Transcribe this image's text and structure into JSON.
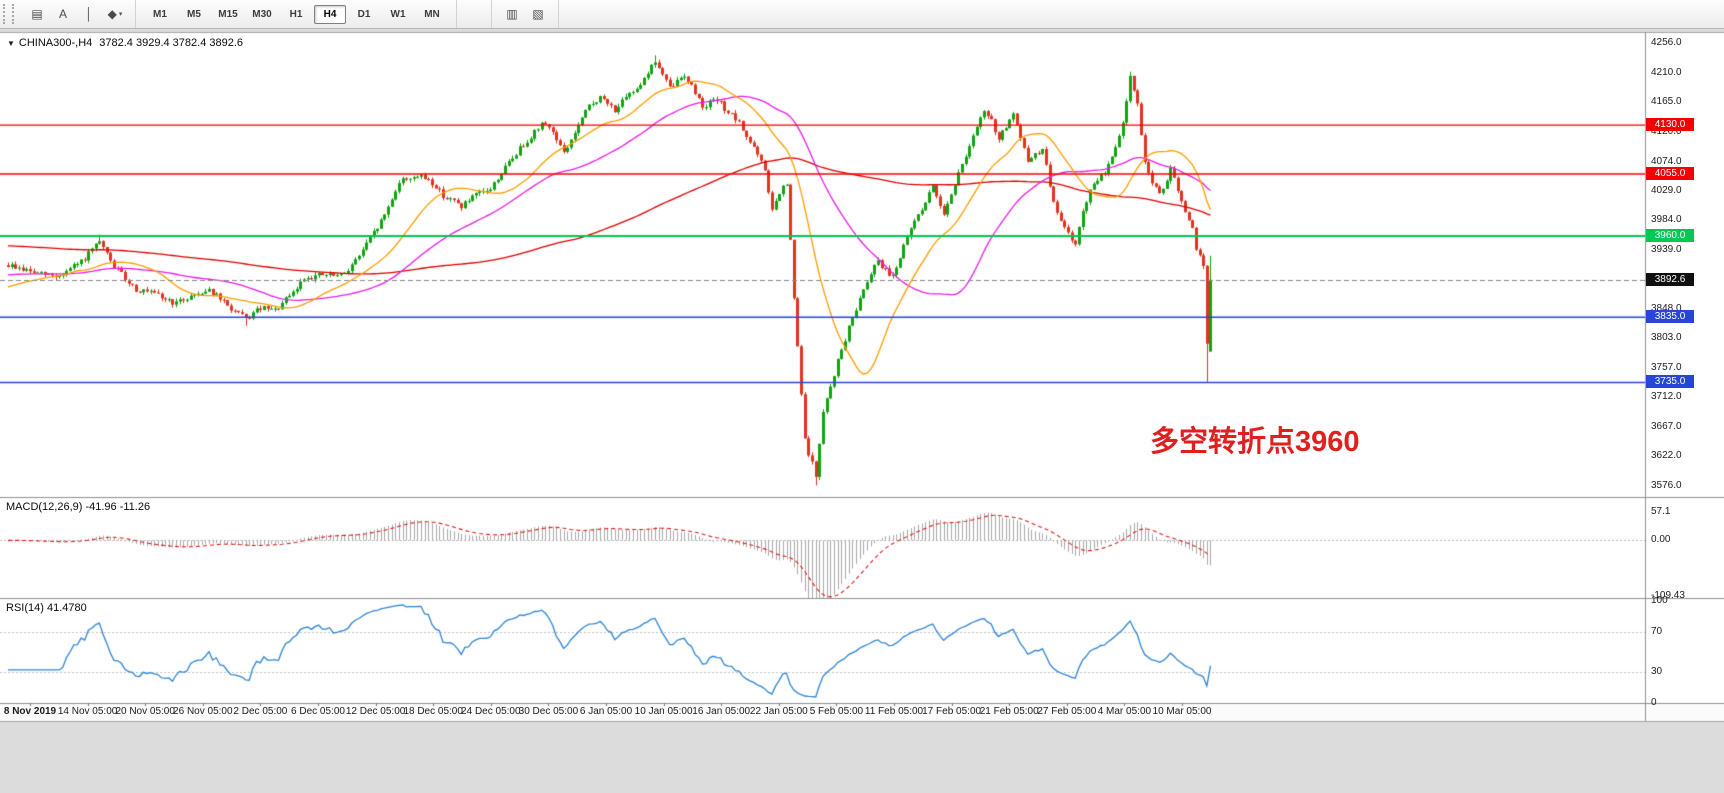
{
  "toolbar": {
    "tools": [
      {
        "name": "chart-window-icon",
        "glyph": "▤"
      },
      {
        "name": "text-label-tool-icon",
        "glyph": "A"
      },
      {
        "name": "vertical-line-tool-icon",
        "glyph": "│"
      },
      {
        "name": "draw-tools-icon",
        "glyph": "◆",
        "caret": "▾"
      }
    ],
    "timeframes": [
      {
        "label": "M1"
      },
      {
        "label": "M5"
      },
      {
        "label": "M15"
      },
      {
        "label": "M30"
      },
      {
        "label": "H1"
      },
      {
        "label": "H4"
      },
      {
        "label": "D1"
      },
      {
        "label": "W1"
      },
      {
        "label": "MN"
      }
    ],
    "active_timeframe": "H4",
    "extras": [
      {
        "name": "candlestick-chart-icon",
        "glyph": "▥"
      },
      {
        "name": "line-chart-icon",
        "glyph": "▧"
      }
    ]
  },
  "chart": {
    "collapse_glyph": "▼",
    "header_symbol": "CHINA300-,H4",
    "header_ohlc": "3782.4 3929.4 3782.4 3892.6",
    "annotation": {
      "text": "多空转折点3960",
      "color": "#e01f1f"
    },
    "axis_labels": [
      {
        "text": "4256.0",
        "value": 4256.0
      },
      {
        "text": "4210.0",
        "value": 4210.0
      },
      {
        "text": "4165.0",
        "value": 4165.0
      },
      {
        "text": "4120.0",
        "value": 4120.0
      },
      {
        "text": "4074.0",
        "value": 4074.0
      },
      {
        "text": "4029.0",
        "value": 4029.0
      },
      {
        "text": "3984.0",
        "value": 3984.0
      },
      {
        "text": "3939.0",
        "value": 3939.0
      },
      {
        "text": "3848.0",
        "value": 3848.0
      },
      {
        "text": "3803.0",
        "value": 3803.0
      },
      {
        "text": "3757.0",
        "value": 3757.0
      },
      {
        "text": "3712.0",
        "value": 3712.0
      },
      {
        "text": "3667.0",
        "value": 3667.0
      },
      {
        "text": "3622.0",
        "value": 3622.0
      },
      {
        "text": "3576.0",
        "value": 3576.0
      }
    ],
    "levels": [
      {
        "text": "4130.0",
        "value": 4130.0,
        "color": "#f40000",
        "width": 1.4
      },
      {
        "text": "4055.0",
        "value": 4055.0,
        "color": "#f40000",
        "width": 1.4
      },
      {
        "text": "3960.0",
        "value": 3960.0,
        "color": "#00c853",
        "width": 2
      },
      {
        "text": "3835.0",
        "value": 3835.0,
        "color": "#2546d9",
        "width": 1.6
      },
      {
        "text": "3735.0",
        "value": 3735.0,
        "color": "#2546d9",
        "width": 1.6
      }
    ],
    "current_price": {
      "text": "3892.6",
      "value": 3892.6,
      "line_color": "#8a8a8a",
      "tag_bg": "#101010"
    }
  },
  "panels": {
    "macd": {
      "label": "MACD(12,26,9) -41.96 -11.26",
      "axis": [
        {
          "text": "57.1",
          "value": 57.1
        },
        {
          "text": "0.00",
          "value": 0
        },
        {
          "text": "-109.43",
          "value": -109.43
        }
      ]
    },
    "rsi": {
      "label": "RSI(14) 41.4780",
      "axis": [
        {
          "text": "100",
          "value": 100
        },
        {
          "text": "70",
          "value": 70
        },
        {
          "text": "30",
          "value": 30
        },
        {
          "text": "0",
          "value": 0
        }
      ]
    }
  },
  "x_axis": {
    "labels": [
      "8 Nov 2019",
      "14 Nov 05:00",
      "20 Nov 05:00",
      "26 Nov 05:00",
      "2 Dec 05:00",
      "6 Dec 05:00",
      "12 Dec 05:00",
      "18 Dec 05:00",
      "24 Dec 05:00",
      "30 Dec 05:00",
      "6 Jan 05:00",
      "10 Jan 05:00",
      "16 Jan 05:00",
      "22 Jan 05:00",
      "5 Feb 05:00",
      "11 Feb 05:00",
      "17 Feb 05:00",
      "21 Feb 05:00",
      "27 Feb 05:00",
      "4 Mar 05:00",
      "10 Mar 05:00"
    ]
  },
  "chart_data": {
    "type": "candlestick",
    "symbol": "CHINA300-",
    "timeframe": "H4",
    "bars": 330,
    "ylim": [
      3559.2,
      4271.4
    ],
    "last_bar": {
      "open": 3782.4,
      "high": 3929.4,
      "low": 3782.4,
      "close": 3892.6
    },
    "price_anchors": [
      [
        0,
        3915
      ],
      [
        8,
        3902
      ],
      [
        14,
        3898
      ],
      [
        20,
        3920
      ],
      [
        25,
        3950
      ],
      [
        29,
        3912
      ],
      [
        35,
        3878
      ],
      [
        40,
        3870
      ],
      [
        46,
        3856
      ],
      [
        50,
        3868
      ],
      [
        55,
        3878
      ],
      [
        60,
        3852
      ],
      [
        65,
        3832
      ],
      [
        69,
        3849
      ],
      [
        73,
        3845
      ],
      [
        78,
        3872
      ],
      [
        81,
        3896
      ],
      [
        86,
        3900
      ],
      [
        91,
        3898
      ],
      [
        95,
        3922
      ],
      [
        99,
        3955
      ],
      [
        103,
        3992
      ],
      [
        107,
        4043
      ],
      [
        111,
        4052
      ],
      [
        115,
        4047
      ],
      [
        119,
        4022
      ],
      [
        124,
        4006
      ],
      [
        128,
        4022
      ],
      [
        132,
        4032
      ],
      [
        136,
        4065
      ],
      [
        140,
        4094
      ],
      [
        144,
        4120
      ],
      [
        147,
        4135
      ],
      [
        150,
        4110
      ],
      [
        152,
        4086
      ],
      [
        155,
        4118
      ],
      [
        159,
        4160
      ],
      [
        162,
        4172
      ],
      [
        166,
        4154
      ],
      [
        170,
        4176
      ],
      [
        173,
        4195
      ],
      [
        177,
        4228
      ],
      [
        181,
        4186
      ],
      [
        185,
        4208
      ],
      [
        188,
        4180
      ],
      [
        190,
        4160
      ],
      [
        194,
        4168
      ],
      [
        197,
        4150
      ],
      [
        200,
        4132
      ],
      [
        204,
        4095
      ],
      [
        207,
        4060
      ],
      [
        209,
        3998
      ],
      [
        211,
        4025
      ],
      [
        213,
        4040
      ],
      [
        215,
        3862
      ],
      [
        218,
        3645
      ],
      [
        221,
        3592
      ],
      [
        223,
        3688
      ],
      [
        227,
        3768
      ],
      [
        230,
        3818
      ],
      [
        233,
        3865
      ],
      [
        236,
        3905
      ],
      [
        238,
        3924
      ],
      [
        240,
        3906
      ],
      [
        242,
        3900
      ],
      [
        245,
        3942
      ],
      [
        248,
        3984
      ],
      [
        251,
        4012
      ],
      [
        253,
        4035
      ],
      [
        256,
        3996
      ],
      [
        259,
        4040
      ],
      [
        262,
        4085
      ],
      [
        265,
        4125
      ],
      [
        267,
        4152
      ],
      [
        269,
        4135
      ],
      [
        271,
        4110
      ],
      [
        273,
        4128
      ],
      [
        275,
        4145
      ],
      [
        277,
        4108
      ],
      [
        279,
        4076
      ],
      [
        281,
        4085
      ],
      [
        283,
        4092
      ],
      [
        285,
        4040
      ],
      [
        287,
        3992
      ],
      [
        290,
        3962
      ],
      [
        292,
        3950
      ],
      [
        294,
        3995
      ],
      [
        296,
        4030
      ],
      [
        298,
        4042
      ],
      [
        300,
        4060
      ],
      [
        302,
        4082
      ],
      [
        304,
        4110
      ],
      [
        306,
        4165
      ],
      [
        307,
        4205
      ],
      [
        309,
        4160
      ],
      [
        311,
        4075
      ],
      [
        313,
        4042
      ],
      [
        315,
        4022
      ],
      [
        317,
        4048
      ],
      [
        318,
        4060
      ],
      [
        320,
        4030
      ],
      [
        322,
        3995
      ],
      [
        324,
        3968
      ],
      [
        325,
        3942
      ],
      [
        326,
        3930
      ],
      [
        327,
        3912
      ],
      [
        328,
        3795
      ],
      [
        329,
        3892.6
      ]
    ],
    "forced_highs": [
      [
        25,
        3962
      ],
      [
        177,
        4237
      ],
      [
        307,
        4212
      ]
    ],
    "forced_lows": [
      [
        65,
        3822
      ],
      [
        221,
        3577
      ],
      [
        328,
        3736
      ]
    ],
    "moving_averages": [
      {
        "name": "ma-slow-red",
        "period": 130,
        "color": "#e00000",
        "pre": 3945
      },
      {
        "name": "ma-mid-magenta",
        "period": 46,
        "color": "#e81ee8",
        "pre": 3900
      },
      {
        "name": "ma-fast-orange",
        "period": 20,
        "color": "#ff9d00",
        "pre": 3880
      }
    ],
    "macd": {
      "fast": 12,
      "slow": 26,
      "signal": 9,
      "ylim": [
        -114,
        84
      ],
      "current": [
        -41.96,
        -11.26
      ]
    },
    "rsi": {
      "period": 14,
      "ylim": [
        0,
        102
      ],
      "levels": [
        70,
        30
      ],
      "current": 41.478
    },
    "colors": {
      "bull": "#12a212",
      "bear": "#e3331f",
      "histogram": "#a9a9a9",
      "signal": "#e02020",
      "rsi": "#2f86d6"
    }
  }
}
